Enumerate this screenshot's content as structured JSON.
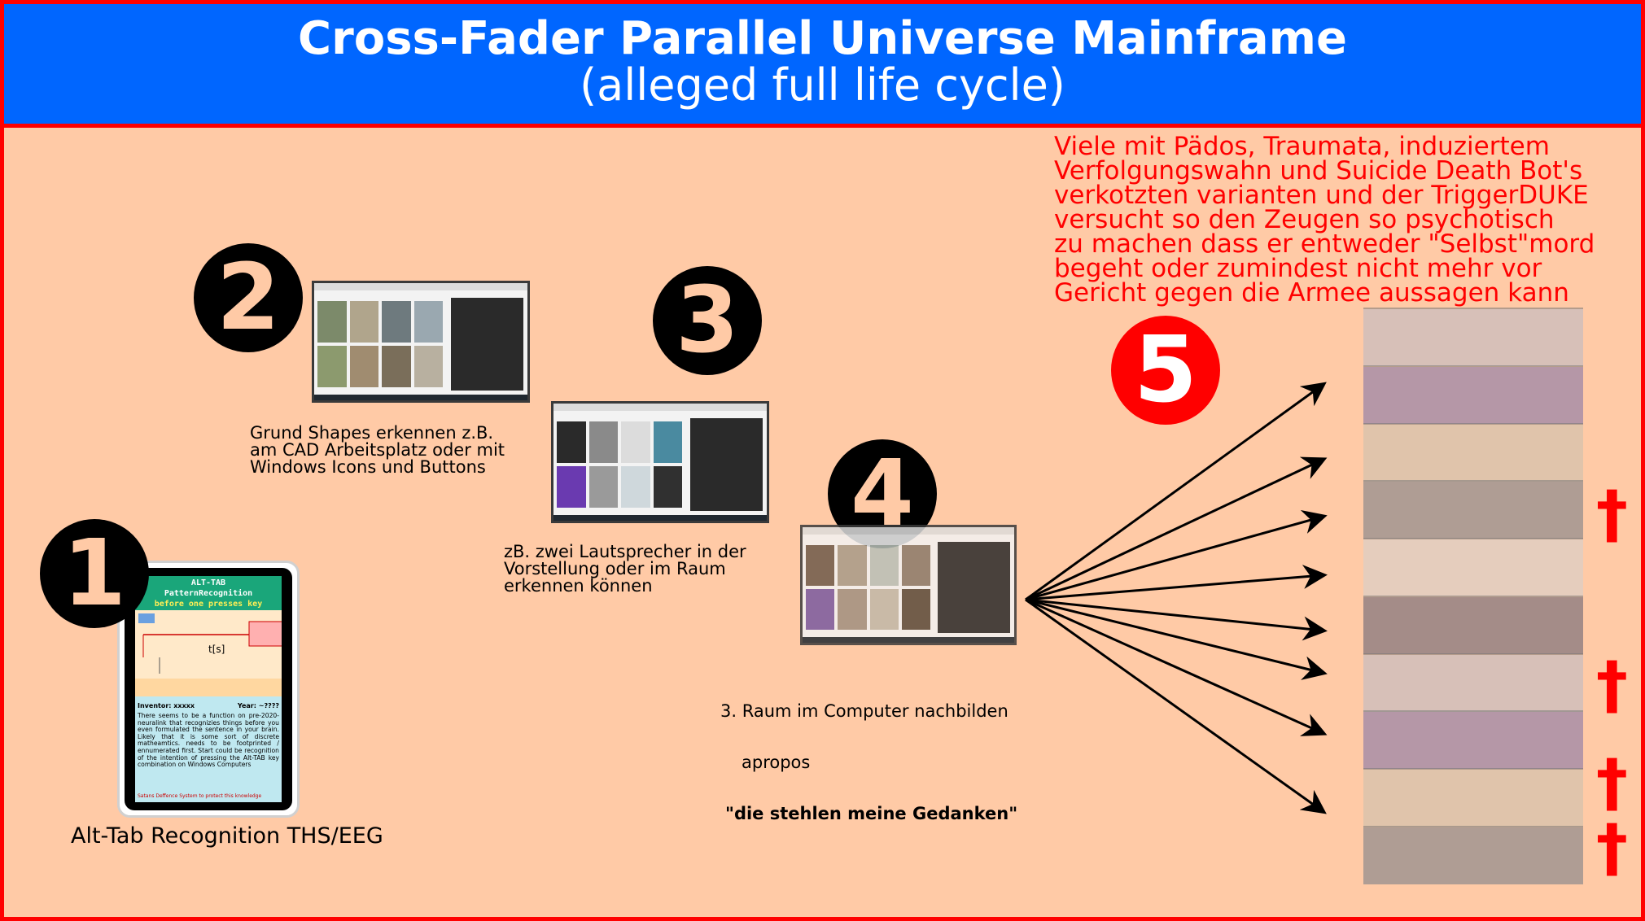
{
  "header": {
    "title": "Cross-Fader Parallel Universe Mainframe",
    "subtitle": "(alleged full life cycle)"
  },
  "colors": {
    "background": "#ffcaa6",
    "header": "#0066ff",
    "border": "#ff0000",
    "warning_text": "#ff0000"
  },
  "steps": [
    {
      "number": "1",
      "caption": "Alt-Tab Recognition THS/EEG"
    },
    {
      "number": "2",
      "caption": "Grund Shapes erkennen z.B.\nam CAD Arbeitsplatz oder mit\nWindows Icons und Buttons"
    },
    {
      "number": "3",
      "caption": "zB. zwei Lautsprecher in der\nVorstellung oder im Raum\nerkennen können"
    },
    {
      "number": "4",
      "caption_line1": "3. Raum im Computer nachbilden",
      "caption_line2": "apropos",
      "caption_bold": "\"die stehlen meine Gedanken\""
    },
    {
      "number": "5"
    }
  ],
  "warning": "Viele mit Pädos, Traumata, induziertem\nVerfolgungswahn und Suicide Death Bot's\nverkotzten varianten und der TriggerDUKE\nversucht so den Zeugen so psychotisch\nzu machen dass er entweder \"Selbst\"mord\nbegeht oder zumindest nicht mehr vor\nGericht gegen die Armee aussagen kann",
  "crosses": [
    "†",
    "†",
    "†",
    "†"
  ],
  "card": {
    "title_line1": "ALT-TAB",
    "title_line2": "PatternRecognition",
    "title_line3": "before one presses key",
    "inventor": "Inventor: xxxxx",
    "year": "Year: ~????",
    "body": "There seems to be a function on pre-2020-neuralink that recognizies things before you even formulated the sentence in your brain. Likely that it is some sort of discrete matheamtics. needs to be footprinted / ennumerated first. Start could be recognition of the intention of pressing the Alt-TAB key combination on Windows Computers",
    "footer": "Satans Deffence System to protect this knowledge"
  }
}
